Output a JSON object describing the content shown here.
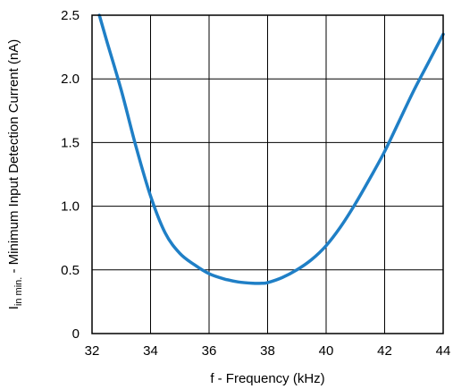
{
  "chart_data": {
    "type": "line",
    "title": "",
    "xlabel": "f - Frequency (kHz)",
    "ylabel": {
      "symbol": "I",
      "subscript": "in min.",
      "text": " - Minimum Input Detection Current (nA)"
    },
    "xlim": [
      32,
      44
    ],
    "ylim": [
      0,
      2.5
    ],
    "xticks": [
      "32",
      "34",
      "36",
      "38",
      "40",
      "42",
      "44"
    ],
    "yticks": [
      "0",
      "0.5",
      "1.0",
      "1.5",
      "2.0",
      "2.5"
    ],
    "grid": true,
    "legend": "none",
    "series": [
      {
        "color": "#1f7fc6",
        "x": [
          32.25,
          32.5,
          33.0,
          33.5,
          34.0,
          34.5,
          35.0,
          35.5,
          36.0,
          36.5,
          37.0,
          37.5,
          37.8,
          38.0,
          38.5,
          39.0,
          39.5,
          40.0,
          40.5,
          41.0,
          41.5,
          42.0,
          42.5,
          43.0,
          43.5,
          44.0
        ],
        "y": [
          2.5,
          2.3,
          1.91,
          1.47,
          1.08,
          0.79,
          0.63,
          0.54,
          0.47,
          0.43,
          0.405,
          0.395,
          0.395,
          0.4,
          0.44,
          0.5,
          0.58,
          0.69,
          0.84,
          1.02,
          1.22,
          1.43,
          1.67,
          1.91,
          2.13,
          2.35
        ]
      }
    ]
  }
}
